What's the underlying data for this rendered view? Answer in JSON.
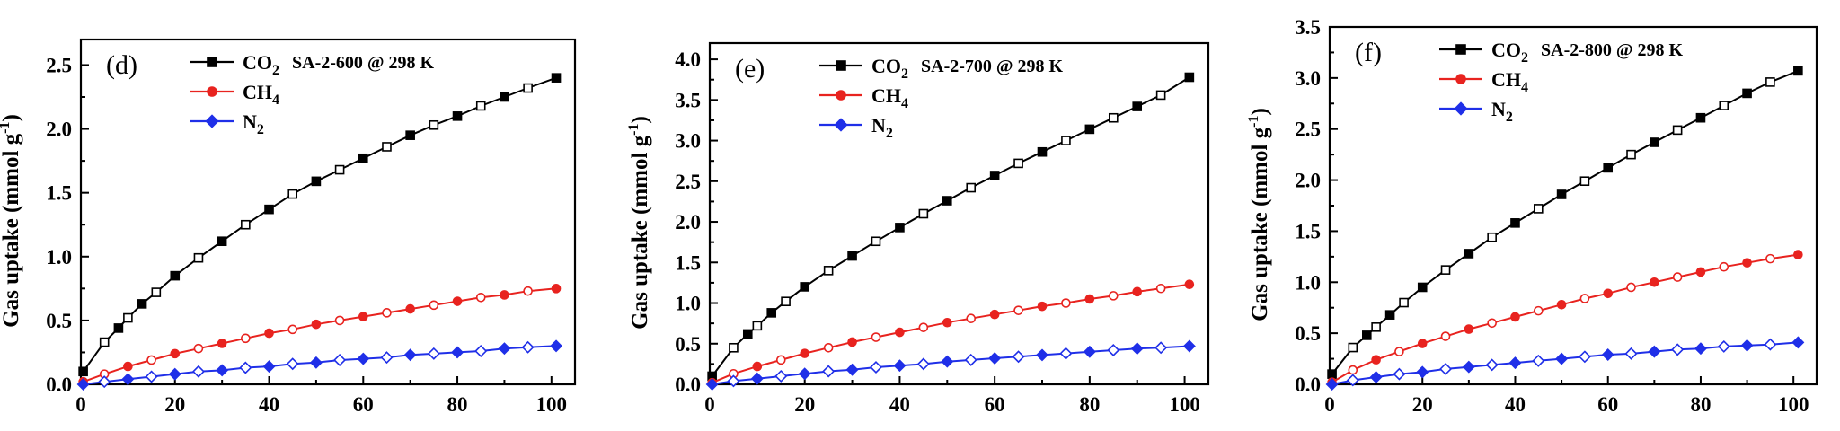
{
  "chart_data": [
    {
      "type": "scatter",
      "panel_label": "(d)",
      "condition": "SA-2-600 @ 298 K",
      "ylabel": "Gas uptake (mmol g⁻¹)",
      "xlabel": "",
      "xlim": [
        0,
        105
      ],
      "ylim": [
        0,
        2.7
      ],
      "x_ticks": [
        0,
        20,
        40,
        60,
        80,
        100
      ],
      "y_ticks": [
        0.0,
        0.5,
        1.0,
        1.5,
        2.0,
        2.5
      ],
      "y_tick_labels": [
        "0.0",
        "0.5",
        "1.0",
        "1.5",
        "2.0",
        "2.5"
      ],
      "grid": false,
      "legend_position": "top-left",
      "series": [
        {
          "name": "CO₂",
          "color": "#000000",
          "marker": "square",
          "x": [
            0.5,
            5,
            8,
            10,
            13,
            16,
            20,
            25,
            30,
            35,
            40,
            45,
            50,
            55,
            60,
            65,
            70,
            75,
            80,
            85,
            90,
            95,
            101
          ],
          "y": [
            0.1,
            0.33,
            0.44,
            0.52,
            0.63,
            0.72,
            0.85,
            0.99,
            1.12,
            1.25,
            1.37,
            1.49,
            1.59,
            1.68,
            1.77,
            1.86,
            1.95,
            2.03,
            2.1,
            2.18,
            2.25,
            2.32,
            2.4
          ]
        },
        {
          "name": "CH₄",
          "color": "#e8231f",
          "marker": "circle",
          "x": [
            0.5,
            5,
            10,
            15,
            20,
            25,
            30,
            35,
            40,
            45,
            50,
            55,
            60,
            65,
            70,
            75,
            80,
            85,
            90,
            95,
            101
          ],
          "y": [
            0.02,
            0.08,
            0.14,
            0.19,
            0.24,
            0.28,
            0.32,
            0.36,
            0.4,
            0.43,
            0.47,
            0.5,
            0.53,
            0.56,
            0.59,
            0.62,
            0.65,
            0.68,
            0.7,
            0.73,
            0.75
          ]
        },
        {
          "name": "N₂",
          "color": "#1f2fe8",
          "marker": "diamond",
          "x": [
            0.5,
            5,
            10,
            15,
            20,
            25,
            30,
            35,
            40,
            45,
            50,
            55,
            60,
            65,
            70,
            75,
            80,
            85,
            90,
            95,
            101
          ],
          "y": [
            0.0,
            0.02,
            0.04,
            0.06,
            0.08,
            0.1,
            0.11,
            0.13,
            0.14,
            0.16,
            0.17,
            0.19,
            0.2,
            0.21,
            0.23,
            0.24,
            0.25,
            0.26,
            0.28,
            0.29,
            0.3
          ]
        }
      ]
    },
    {
      "type": "scatter",
      "panel_label": "(e)",
      "condition": "SA-2-700 @ 298 K",
      "ylabel": "Gas uptake (mmol g⁻¹)",
      "xlabel": "",
      "xlim": [
        0,
        105
      ],
      "ylim": [
        0,
        4.2
      ],
      "x_ticks": [
        0,
        20,
        40,
        60,
        80,
        100
      ],
      "y_ticks": [
        0.0,
        0.5,
        1.0,
        1.5,
        2.0,
        2.5,
        3.0,
        3.5,
        4.0
      ],
      "y_tick_labels": [
        "0.0",
        "0.5",
        "1.0",
        "1.5",
        "2.0",
        "2.5",
        "3.0",
        "3.5",
        "4.0"
      ],
      "grid": false,
      "legend_position": "top-left",
      "series": [
        {
          "name": "CO₂",
          "color": "#000000",
          "marker": "square",
          "x": [
            0.5,
            5,
            8,
            10,
            13,
            16,
            20,
            25,
            30,
            35,
            40,
            45,
            50,
            55,
            60,
            65,
            70,
            75,
            80,
            85,
            90,
            95,
            101
          ],
          "y": [
            0.1,
            0.45,
            0.62,
            0.72,
            0.88,
            1.02,
            1.2,
            1.4,
            1.58,
            1.76,
            1.93,
            2.1,
            2.26,
            2.42,
            2.57,
            2.72,
            2.86,
            3.0,
            3.14,
            3.28,
            3.42,
            3.56,
            3.78
          ]
        },
        {
          "name": "CH₄",
          "color": "#e8231f",
          "marker": "circle",
          "x": [
            0.5,
            5,
            10,
            15,
            20,
            25,
            30,
            35,
            40,
            45,
            50,
            55,
            60,
            65,
            70,
            75,
            80,
            85,
            90,
            95,
            101
          ],
          "y": [
            0.02,
            0.13,
            0.22,
            0.3,
            0.38,
            0.45,
            0.52,
            0.58,
            0.64,
            0.7,
            0.76,
            0.81,
            0.86,
            0.91,
            0.96,
            1.0,
            1.05,
            1.09,
            1.14,
            1.18,
            1.23
          ]
        },
        {
          "name": "N₂",
          "color": "#1f2fe8",
          "marker": "diamond",
          "x": [
            0.5,
            5,
            10,
            15,
            20,
            25,
            30,
            35,
            40,
            45,
            50,
            55,
            60,
            65,
            70,
            75,
            80,
            85,
            90,
            95,
            101
          ],
          "y": [
            0.0,
            0.04,
            0.07,
            0.1,
            0.13,
            0.16,
            0.18,
            0.21,
            0.23,
            0.25,
            0.28,
            0.3,
            0.32,
            0.34,
            0.36,
            0.38,
            0.4,
            0.42,
            0.44,
            0.45,
            0.47
          ]
        }
      ]
    },
    {
      "type": "scatter",
      "panel_label": "(f)",
      "condition": "SA-2-800 @ 298 K",
      "ylabel": "Gas uptake (mmol g⁻¹)",
      "xlabel": "",
      "xlim": [
        0,
        105
      ],
      "ylim": [
        0,
        3.5
      ],
      "x_ticks": [
        0,
        20,
        40,
        60,
        80,
        100
      ],
      "y_ticks": [
        0.0,
        0.5,
        1.0,
        1.5,
        2.0,
        2.5,
        3.0,
        3.5
      ],
      "y_tick_labels": [
        "0.0",
        "0.5",
        "1.0",
        "1.5",
        "2.0",
        "2.5",
        "3.0",
        "3.5"
      ],
      "grid": false,
      "legend_position": "top-left",
      "series": [
        {
          "name": "CO₂",
          "color": "#000000",
          "marker": "square",
          "x": [
            0.5,
            5,
            8,
            10,
            13,
            16,
            20,
            25,
            30,
            35,
            40,
            45,
            50,
            55,
            60,
            65,
            70,
            75,
            80,
            85,
            90,
            95,
            101
          ],
          "y": [
            0.1,
            0.36,
            0.48,
            0.56,
            0.68,
            0.8,
            0.95,
            1.12,
            1.28,
            1.44,
            1.58,
            1.72,
            1.86,
            1.99,
            2.12,
            2.25,
            2.37,
            2.49,
            2.61,
            2.73,
            2.85,
            2.96,
            3.07
          ]
        },
        {
          "name": "CH₄",
          "color": "#e8231f",
          "marker": "circle",
          "x": [
            0.5,
            5,
            10,
            15,
            20,
            25,
            30,
            35,
            40,
            45,
            50,
            55,
            60,
            65,
            70,
            75,
            80,
            85,
            90,
            95,
            101
          ],
          "y": [
            0.02,
            0.14,
            0.24,
            0.32,
            0.4,
            0.47,
            0.54,
            0.6,
            0.66,
            0.72,
            0.78,
            0.84,
            0.89,
            0.95,
            1.0,
            1.05,
            1.1,
            1.15,
            1.19,
            1.23,
            1.27
          ]
        },
        {
          "name": "N₂",
          "color": "#1f2fe8",
          "marker": "diamond",
          "x": [
            0.5,
            5,
            10,
            15,
            20,
            25,
            30,
            35,
            40,
            45,
            50,
            55,
            60,
            65,
            70,
            75,
            80,
            85,
            90,
            95,
            101
          ],
          "y": [
            0.0,
            0.04,
            0.07,
            0.1,
            0.12,
            0.15,
            0.17,
            0.19,
            0.21,
            0.23,
            0.25,
            0.27,
            0.29,
            0.3,
            0.32,
            0.34,
            0.35,
            0.37,
            0.38,
            0.39,
            0.41
          ]
        }
      ]
    }
  ]
}
